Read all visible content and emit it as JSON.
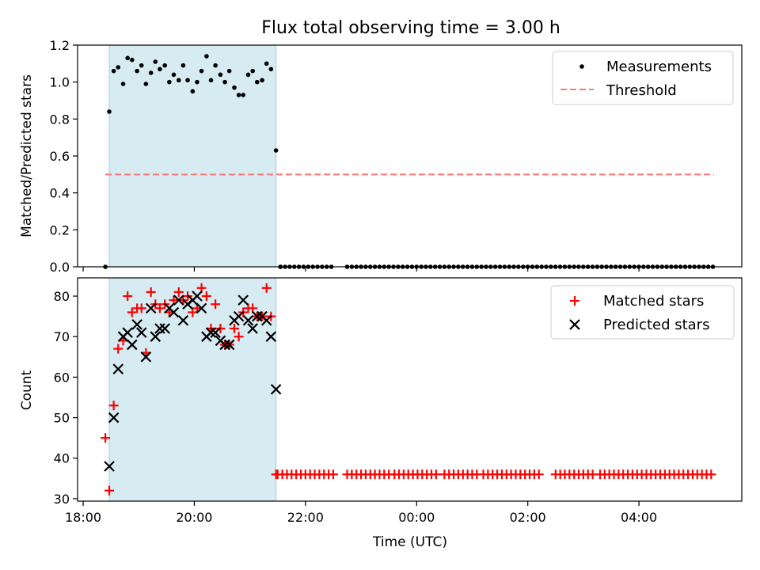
{
  "chart_data": [
    {
      "type": "scatter",
      "title": "Flux total observing time = 3.00 h",
      "xlabel": "",
      "ylabel": "Matched/Predicted stars",
      "x_unit": "hours since 18:00 UTC",
      "xlim": [
        17.9,
        29.85
      ],
      "ylim": [
        0.0,
        1.2
      ],
      "yticks": [
        0.0,
        0.2,
        0.4,
        0.6,
        0.8,
        1.0,
        1.2
      ],
      "ytick_labels": [
        "0.0",
        "0.2",
        "0.4",
        "0.6",
        "0.8",
        "1.0",
        "1.2"
      ],
      "observing_window": [
        18.47,
        21.47
      ],
      "threshold": {
        "value": 0.5,
        "x_range": [
          18.4,
          29.35
        ]
      },
      "series": [
        {
          "name": "Measurements",
          "marker": "dot",
          "color": "#000000",
          "x": [
            18.4,
            18.47,
            18.55,
            18.63,
            18.72,
            18.8,
            18.88,
            18.97,
            19.05,
            19.13,
            19.22,
            19.3,
            19.38,
            19.47,
            19.55,
            19.63,
            19.72,
            19.8,
            19.88,
            19.97,
            20.05,
            20.13,
            20.22,
            20.3,
            20.38,
            20.47,
            20.55,
            20.63,
            20.72,
            20.8,
            20.88,
            20.97,
            21.05,
            21.13,
            21.22,
            21.3,
            21.38,
            21.47,
            21.55
          ],
          "y": [
            0.0,
            0.84,
            1.06,
            1.08,
            0.99,
            1.13,
            1.12,
            1.06,
            1.09,
            0.99,
            1.05,
            1.11,
            1.07,
            1.09,
            1.0,
            1.04,
            1.01,
            1.09,
            1.01,
            0.95,
            1.0,
            1.06,
            1.14,
            1.01,
            1.09,
            1.04,
            1.0,
            1.06,
            0.97,
            0.93,
            0.93,
            1.04,
            1.06,
            1.0,
            1.01,
            1.1,
            1.07,
            0.63,
            0.0
          ]
        }
      ],
      "zero_series": {
        "name": "Measurements",
        "y": 0.0,
        "step_hours": 0.0833,
        "ranges": [
          [
            21.55,
            22.5
          ],
          [
            22.75,
            29.35
          ]
        ]
      },
      "legend": {
        "position": "top-right",
        "entries": [
          "Measurements",
          "Threshold"
        ]
      }
    },
    {
      "type": "scatter",
      "title": "",
      "xlabel": "Time (UTC)",
      "ylabel": "Count",
      "x_unit": "hours since 18:00 UTC",
      "xlim": [
        17.9,
        29.85
      ],
      "ylim": [
        29.4,
        84.5
      ],
      "yticks": [
        30,
        40,
        50,
        60,
        70,
        80
      ],
      "ytick_labels": [
        "30",
        "40",
        "50",
        "60",
        "70",
        "80"
      ],
      "xticks": [
        18,
        20,
        22,
        24,
        26,
        28
      ],
      "xtick_labels": [
        "18:00",
        "20:00",
        "22:00",
        "00:00",
        "02:00",
        "04:00"
      ],
      "observing_window": [
        18.47,
        21.47
      ],
      "series": [
        {
          "name": "Matched stars",
          "marker": "plus",
          "color": "#ff0000",
          "x": [
            18.4,
            18.47,
            18.55,
            18.63,
            18.72,
            18.8,
            18.88,
            18.97,
            19.05,
            19.13,
            19.22,
            19.3,
            19.38,
            19.47,
            19.55,
            19.63,
            19.72,
            19.8,
            19.88,
            19.97,
            20.05,
            20.13,
            20.22,
            20.3,
            20.38,
            20.47,
            20.55,
            20.63,
            20.72,
            20.8,
            20.88,
            20.97,
            21.05,
            21.13,
            21.22,
            21.3,
            21.38,
            21.47
          ],
          "y": [
            45,
            32,
            53,
            67,
            69,
            80,
            76,
            77,
            77,
            66,
            81,
            78,
            77,
            78,
            76,
            79,
            81,
            79,
            80,
            76,
            77,
            82,
            80,
            72,
            78,
            72,
            68,
            68,
            72,
            70,
            76,
            77,
            77,
            75,
            75,
            82,
            75,
            36
          ]
        },
        {
          "name": "Predicted stars",
          "marker": "x",
          "color": "#000000",
          "x": [
            18.47,
            18.55,
            18.63,
            18.72,
            18.8,
            18.88,
            18.97,
            19.05,
            19.13,
            19.22,
            19.3,
            19.38,
            19.47,
            19.55,
            19.63,
            19.72,
            19.8,
            19.88,
            19.97,
            20.05,
            20.13,
            20.22,
            20.3,
            20.38,
            20.47,
            20.55,
            20.63,
            20.72,
            20.8,
            20.88,
            20.97,
            21.05,
            21.13,
            21.22,
            21.3,
            21.38,
            21.47
          ],
          "y": [
            38,
            50,
            62,
            70,
            71,
            68,
            73,
            71,
            65,
            77,
            70,
            72,
            72,
            77,
            76,
            79,
            74,
            78,
            79,
            80,
            77,
            70,
            71,
            71,
            69,
            68,
            68,
            74,
            75,
            79,
            74,
            72,
            75,
            75,
            74,
            70,
            57
          ]
        }
      ],
      "matched_tail": {
        "name": "Matched stars",
        "y": 36,
        "step_hours": 0.0833,
        "ranges": [
          [
            21.5,
            22.5
          ],
          [
            22.75,
            23.5
          ],
          [
            23.6,
            24.4
          ],
          [
            24.5,
            25.1
          ],
          [
            25.2,
            26.25
          ],
          [
            26.5,
            27.2
          ],
          [
            27.3,
            29.35
          ]
        ]
      },
      "legend": {
        "position": "top-right",
        "entries": [
          "Matched stars",
          "Predicted stars"
        ]
      }
    }
  ]
}
